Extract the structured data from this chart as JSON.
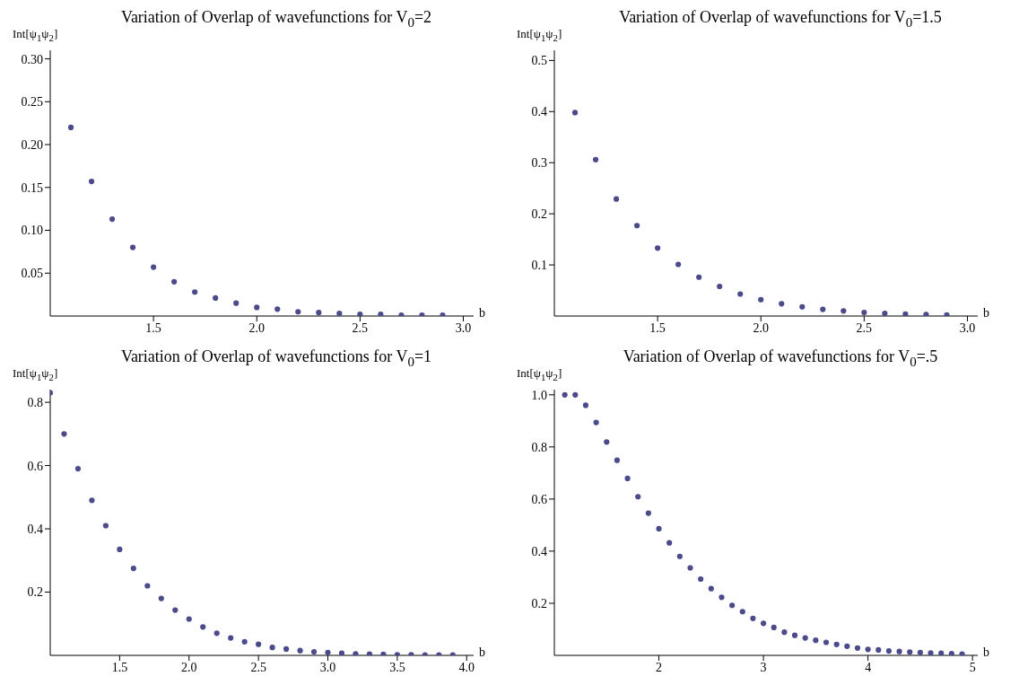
{
  "chart_data": [
    {
      "type": "scatter",
      "title": "Variation of Overlap of wavefunctions for V$_{0}$=2",
      "xlabel": "b",
      "ylabel": "Int[ψ$_{1}$ψ$_{2}$]",
      "marker": "circle",
      "x": [
        1.1,
        1.2,
        1.3,
        1.4,
        1.5,
        1.6,
        1.7,
        1.8,
        1.9,
        2.0,
        2.1,
        2.2,
        2.3,
        2.4,
        2.5,
        2.6,
        2.7,
        2.8,
        2.9
      ],
      "series": [
        {
          "color": "#4b4b8c",
          "values": [
            0.22,
            0.157,
            0.113,
            0.08,
            0.057,
            0.04,
            0.028,
            0.021,
            0.015,
            0.01,
            0.008,
            0.005,
            0.004,
            0.003,
            0.002,
            0.002,
            0.001,
            0.001,
            0.001
          ]
        }
      ],
      "xlim": [
        1,
        3.05
      ],
      "xticks": [
        1.5,
        {
          "value": 2,
          "label": "2.0"
        },
        2.5,
        {
          "value": 3,
          "label": "3.0"
        }
      ],
      "ylim": [
        0,
        0.31
      ],
      "yticks": [
        0.05,
        {
          "value": 0.1,
          "label": "0.10"
        },
        0.15,
        {
          "value": 0.2,
          "label": "0.20"
        },
        0.25,
        {
          "value": 0.3,
          "label": "0.30"
        }
      ]
    },
    {
      "type": "scatter",
      "title": "Variation of Overlap of wavefunctions for V$_{0}$=1.5",
      "xlabel": "b",
      "ylabel": "Int[ψ$_{1}$ψ$_{2}$]",
      "marker": "circle",
      "x": [
        1.1,
        1.2,
        1.3,
        1.4,
        1.5,
        1.6,
        1.7,
        1.8,
        1.9,
        2.0,
        2.1,
        2.2,
        2.3,
        2.4,
        2.5,
        2.6,
        2.7,
        2.8,
        2.9
      ],
      "series": [
        {
          "color": "#4b4b8c",
          "values": [
            0.398,
            0.306,
            0.229,
            0.177,
            0.133,
            0.101,
            0.076,
            0.058,
            0.043,
            0.032,
            0.024,
            0.018,
            0.013,
            0.01,
            0.007,
            0.005,
            0.004,
            0.003,
            0.002
          ]
        }
      ],
      "xlim": [
        1,
        3.05
      ],
      "xticks": [
        1.5,
        {
          "value": 2,
          "label": "2.0"
        },
        2.5,
        {
          "value": 3,
          "label": "3.0"
        }
      ],
      "ylim": [
        0,
        0.52
      ],
      "yticks": [
        0.1,
        0.2,
        0.3,
        0.4,
        0.5
      ]
    },
    {
      "type": "scatter",
      "title": "Variation of Overlap of wavefunctions for V$_{0}$=1",
      "xlabel": "b",
      "ylabel": "Int[ψ$_{1}$ψ$_{2}$]",
      "marker": "circle",
      "x": [
        1.0,
        1.1,
        1.2,
        1.3,
        1.4,
        1.5,
        1.6,
        1.7,
        1.8,
        1.9,
        2.0,
        2.1,
        2.2,
        2.3,
        2.4,
        2.5,
        2.6,
        2.7,
        2.8,
        2.9,
        3.0,
        3.1,
        3.2,
        3.3,
        3.4,
        3.5,
        3.6,
        3.7,
        3.8,
        3.9
      ],
      "series": [
        {
          "color": "#4b4b8c",
          "values": [
            0.83,
            0.7,
            0.59,
            0.49,
            0.41,
            0.335,
            0.275,
            0.22,
            0.18,
            0.143,
            0.115,
            0.09,
            0.07,
            0.055,
            0.043,
            0.035,
            0.025,
            0.02,
            0.015,
            0.011,
            0.009,
            0.007,
            0.005,
            0.004,
            0.003,
            0.002,
            0.002,
            0.001,
            0.001,
            0.001
          ]
        }
      ],
      "xlim": [
        1,
        4.05
      ],
      "xticks": [
        1.5,
        {
          "value": 2,
          "label": "2.0"
        },
        2.5,
        {
          "value": 3,
          "label": "3.0"
        },
        3.5,
        {
          "value": 4,
          "label": "4.0"
        }
      ],
      "ylim": [
        0,
        0.84
      ],
      "yticks": [
        0.2,
        0.4,
        0.6,
        0.8
      ]
    },
    {
      "type": "scatter",
      "title": "Variation of Overlap of wavefunctions for V$_{0}$=.5",
      "xlabel": "b",
      "ylabel": "Int[ψ$_{1}$ψ$_{2}$]",
      "marker": "circle",
      "x": [
        1.1,
        1.2,
        1.3,
        1.4,
        1.5,
        1.6,
        1.7,
        1.8,
        1.9,
        2.0,
        2.1,
        2.2,
        2.3,
        2.4,
        2.5,
        2.6,
        2.7,
        2.8,
        2.9,
        3.0,
        3.1,
        3.2,
        3.3,
        3.4,
        3.5,
        3.6,
        3.7,
        3.8,
        3.9,
        4.0,
        4.1,
        4.2,
        4.3,
        4.4,
        4.5,
        4.6,
        4.7,
        4.8,
        4.9
      ],
      "series": [
        {
          "color": "#4b4b8c",
          "values": [
            1.0,
            1.0,
            0.96,
            0.894,
            0.819,
            0.749,
            0.679,
            0.609,
            0.546,
            0.486,
            0.432,
            0.38,
            0.336,
            0.293,
            0.256,
            0.223,
            0.192,
            0.168,
            0.142,
            0.123,
            0.107,
            0.089,
            0.077,
            0.067,
            0.058,
            0.05,
            0.042,
            0.035,
            0.028,
            0.023,
            0.021,
            0.017,
            0.015,
            0.013,
            0.011,
            0.009,
            0.008,
            0.007,
            0.005
          ]
        }
      ],
      "xlim": [
        1,
        5.05
      ],
      "xticks": [
        2,
        3,
        4,
        5
      ],
      "ylim": [
        0,
        1.02
      ],
      "yticks": [
        0.2,
        0.4,
        0.6,
        0.8,
        {
          "value": 1,
          "label": "1.0"
        }
      ]
    }
  ]
}
